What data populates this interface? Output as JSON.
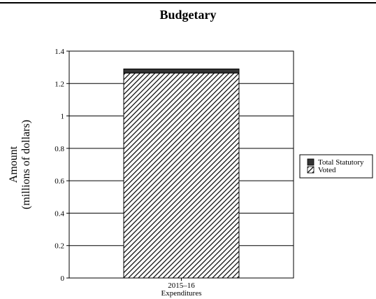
{
  "chart_data": {
    "type": "bar",
    "title": "Budgetary",
    "ylabel": [
      "Amount",
      "(millions of dollars)"
    ],
    "xlabel": "",
    "ylim": [
      0,
      1.4
    ],
    "yticks": [
      "0",
      "0.2",
      "0.4",
      "0.6",
      "0.8",
      "1",
      "1.2",
      "1.4"
    ],
    "categories": [
      [
        "2015–16",
        "Expenditures"
      ]
    ],
    "series": [
      {
        "name": "Voted",
        "values": [
          1.265
        ],
        "color": "#ffffff",
        "pattern": "diagonal-hatch"
      },
      {
        "name": "Total Statutory",
        "values": [
          0.025
        ],
        "color": "#333333",
        "pattern": "solid"
      }
    ],
    "stacked": true,
    "grid": true,
    "legend": "right",
    "legend_order": [
      "Total Statutory",
      "Voted"
    ]
  }
}
